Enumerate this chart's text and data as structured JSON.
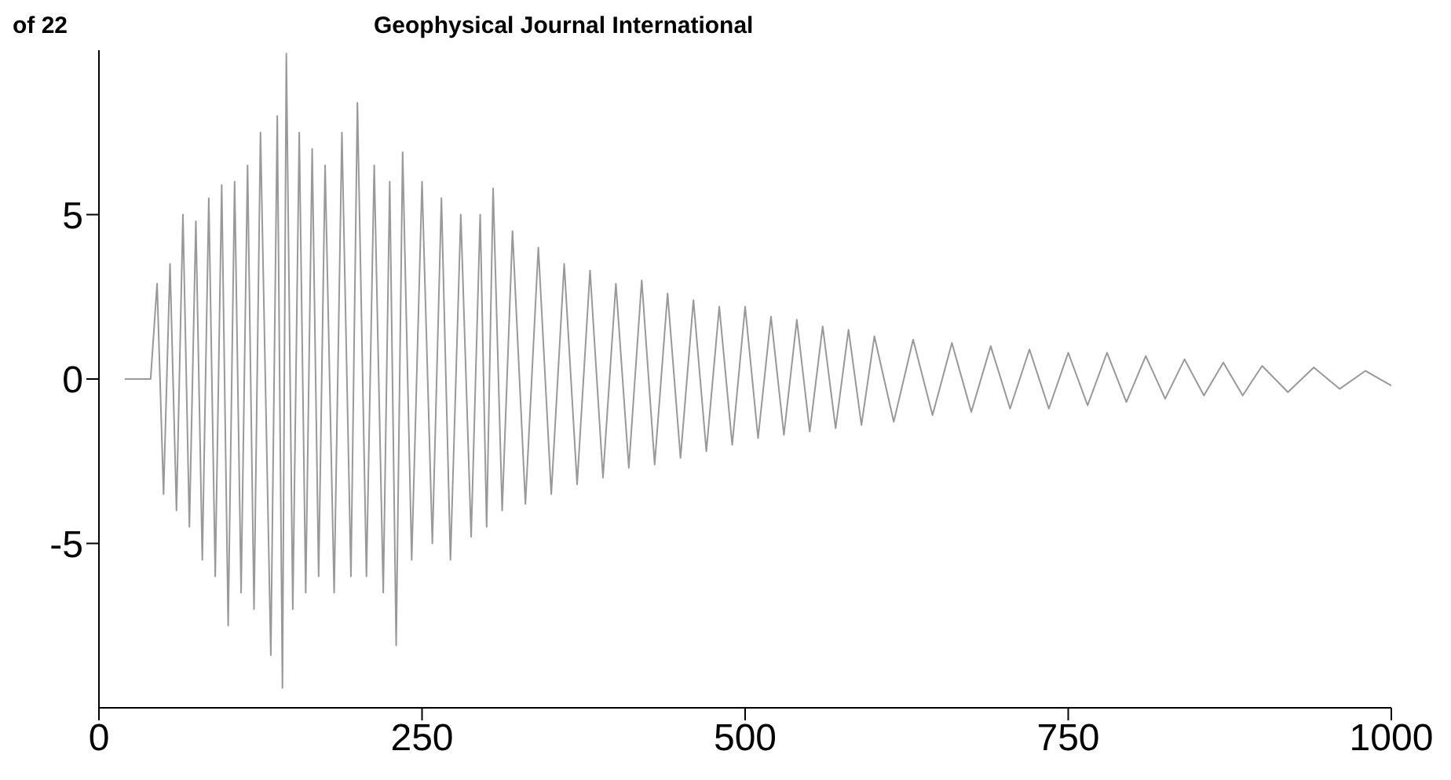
{
  "chart_data": {
    "type": "line",
    "annotations": [
      "of 22",
      "Geophysical Journal International"
    ],
    "series": [
      {
        "color": "#999999",
        "x": [
          20,
          30,
          40,
          45,
          50,
          55,
          60,
          65,
          70,
          75,
          80,
          85,
          90,
          95,
          100,
          105,
          110,
          115,
          120,
          125,
          133,
          138,
          142,
          145,
          150,
          155,
          160,
          165,
          170,
          175,
          182,
          188,
          195,
          200,
          207,
          213,
          220,
          225,
          230,
          235,
          242,
          250,
          258,
          265,
          272,
          280,
          288,
          295,
          300,
          305,
          312,
          320,
          330,
          340,
          350,
          360,
          370,
          380,
          390,
          400,
          410,
          420,
          430,
          440,
          450,
          460,
          470,
          480,
          490,
          500,
          510,
          520,
          530,
          540,
          550,
          560,
          570,
          580,
          590,
          600,
          615,
          630,
          645,
          660,
          675,
          690,
          705,
          720,
          735,
          750,
          765,
          780,
          795,
          810,
          825,
          840,
          855,
          870,
          885,
          900,
          920,
          940,
          960,
          980,
          1000
        ],
        "values": [
          0,
          0,
          0,
          2.9,
          -3.5,
          3.5,
          -4,
          5,
          -4.5,
          4.8,
          -5.5,
          5.5,
          -6,
          5.9,
          -7.5,
          6,
          -6.5,
          6.5,
          -7,
          7.5,
          -8.4,
          8,
          -9.4,
          9.9,
          -7,
          7.5,
          -6.5,
          7,
          -6,
          6.5,
          -6.5,
          7.5,
          -6,
          8.4,
          -6,
          6.5,
          -6.5,
          6,
          -8.1,
          6.9,
          -5.5,
          6,
          -5,
          5.5,
          -5.5,
          5,
          -4.8,
          5,
          -4.5,
          5.8,
          -4,
          4.5,
          -3.8,
          4,
          -3.5,
          3.5,
          -3.2,
          3.3,
          -3,
          2.9,
          -2.7,
          3,
          -2.6,
          2.6,
          -2.4,
          2.4,
          -2.2,
          2.2,
          -2,
          2.2,
          -1.8,
          1.9,
          -1.7,
          1.8,
          -1.6,
          1.6,
          -1.5,
          1.5,
          -1.4,
          1.3,
          -1.3,
          1.2,
          -1.1,
          1.1,
          -1,
          1,
          -0.9,
          0.9,
          -0.9,
          0.8,
          -0.8,
          0.8,
          -0.7,
          0.7,
          -0.6,
          0.6,
          -0.5,
          0.5,
          -0.5,
          0.4,
          -0.4,
          0.35,
          -0.3,
          0.25,
          -0.2
        ]
      }
    ],
    "xlim": [
      0,
      1000
    ],
    "xticks": [
      0,
      250,
      500,
      750,
      1000
    ],
    "ylim": [
      -10,
      10
    ],
    "yticks": [
      -5,
      0,
      5
    ],
    "grid": false,
    "legend": false,
    "marker": "none",
    "line_style": "solid"
  }
}
